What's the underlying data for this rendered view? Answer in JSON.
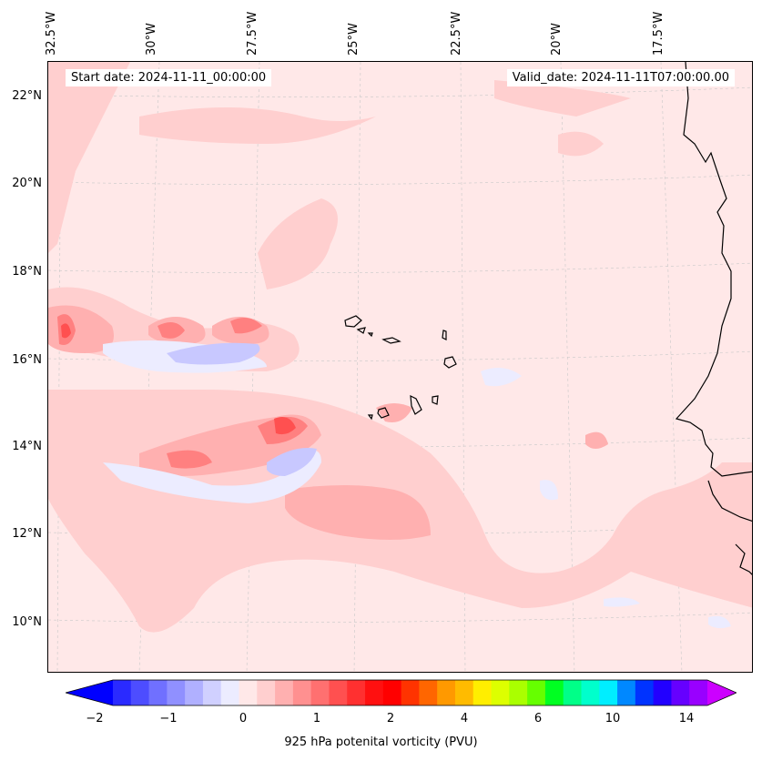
{
  "header": {
    "start_date": "Start date: 2024-11-11_00:00:00",
    "valid_date": "Valid_date: 2024-11-11T07:00:00.00"
  },
  "map": {
    "longitude_labels": [
      "32.5°W",
      "30°W",
      "27.5°W",
      "25°W",
      "22.5°W",
      "20°W",
      "17.5°W"
    ],
    "latitude_labels": [
      "22°N",
      "20°N",
      "18°N",
      "16°N",
      "14°N",
      "12°N",
      "10°N"
    ],
    "background_color": "#ffe8e8",
    "features": [
      "coastline-west-africa",
      "cape-verde-islands"
    ]
  },
  "colorbar": {
    "label": "925 hPa potenital vorticity (PVU)",
    "tick_labels": [
      "−2",
      "−1",
      "0",
      "1",
      "2",
      "4",
      "6",
      "10",
      "14"
    ],
    "colors": [
      "#0000ff",
      "#2a2aff",
      "#4d4dff",
      "#7070ff",
      "#9090ff",
      "#b0b0ff",
      "#d0d0ff",
      "#ececff",
      "#ffe8e8",
      "#ffcfcf",
      "#ffb0b0",
      "#ff9090",
      "#ff7070",
      "#ff5050",
      "#ff3030",
      "#ff1010",
      "#ff0000",
      "#ff3300",
      "#ff6600",
      "#ff9900",
      "#ffbb00",
      "#ffee00",
      "#ddff00",
      "#aaff00",
      "#66ff00",
      "#00ff22",
      "#00ff88",
      "#00ffcc",
      "#00eeff",
      "#0088ff",
      "#0033ff",
      "#2200ff",
      "#6600ff",
      "#9900ff",
      "#cc00ff"
    ]
  }
}
